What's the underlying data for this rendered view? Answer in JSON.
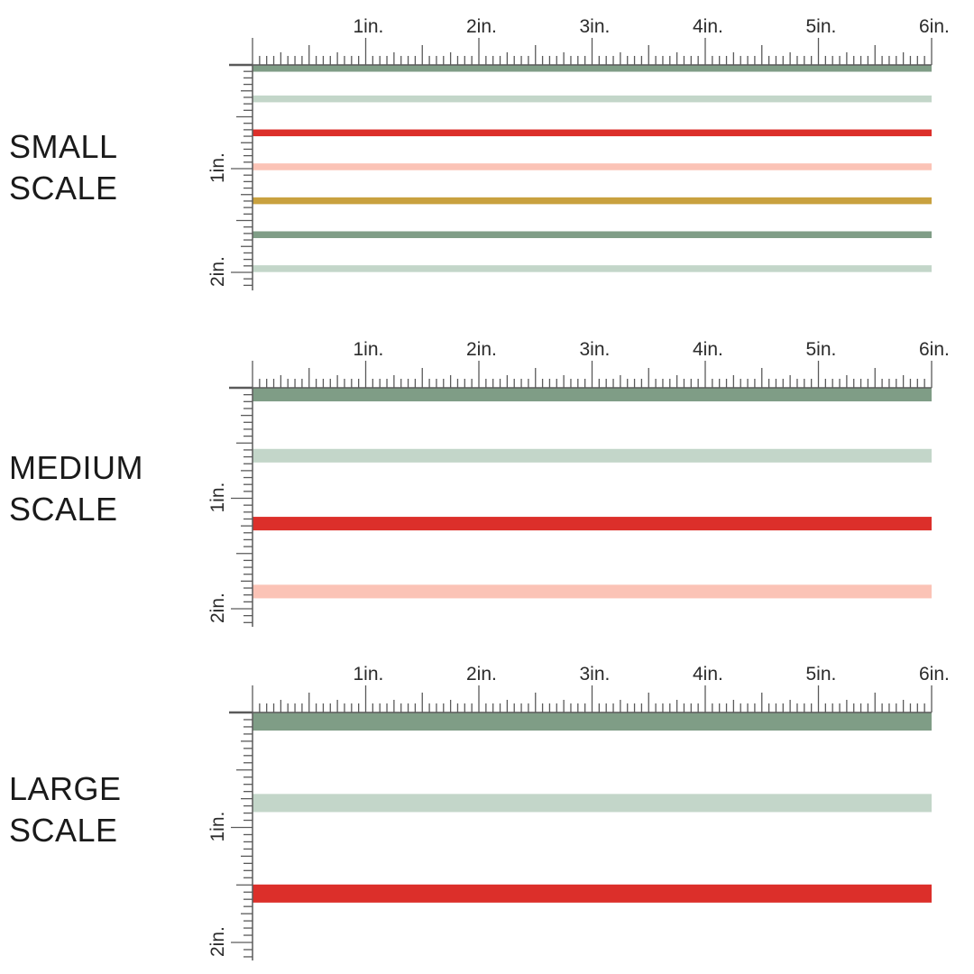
{
  "colors": {
    "sage": "#7f9d86",
    "light_sage": "#c3d6c9",
    "red": "#dc2f2a",
    "blush": "#fbc3b6",
    "mustard": "#c9a13f",
    "ruler": "#5a5a5a"
  },
  "panels": [
    {
      "id": "small",
      "label_lines": [
        "SMALL",
        "SCALE"
      ],
      "h_ticks": [
        "1in.",
        "2in.",
        "3in.",
        "4in.",
        "5in.",
        "6in."
      ],
      "v_ticks": [
        "1in.",
        "2in."
      ],
      "stripe_width_in": 0.06,
      "stripe_pitch_in": 0.3,
      "stripes": [
        "sage",
        "light_sage",
        "red",
        "blush",
        "mustard",
        "sage",
        "light_sage"
      ]
    },
    {
      "id": "medium",
      "label_lines": [
        "MEDIUM",
        "SCALE"
      ],
      "h_ticks": [
        "1in.",
        "2in.",
        "3in.",
        "4in.",
        "5in.",
        "6in."
      ],
      "v_ticks": [
        "1in.",
        "2in."
      ],
      "stripe_width_in": 0.12,
      "stripe_pitch_in": 0.6,
      "stripes": [
        "sage",
        "light_sage",
        "red",
        "blush"
      ]
    },
    {
      "id": "large",
      "label_lines": [
        "LARGE",
        "SCALE"
      ],
      "h_ticks": [
        "1in.",
        "2in.",
        "3in.",
        "4in.",
        "5in.",
        "6in."
      ],
      "v_ticks": [
        "1in.",
        "2in."
      ],
      "stripe_width_in": 0.16,
      "stripe_pitch_in": 0.8,
      "stripes": [
        "sage",
        "light_sage",
        "red"
      ]
    }
  ]
}
